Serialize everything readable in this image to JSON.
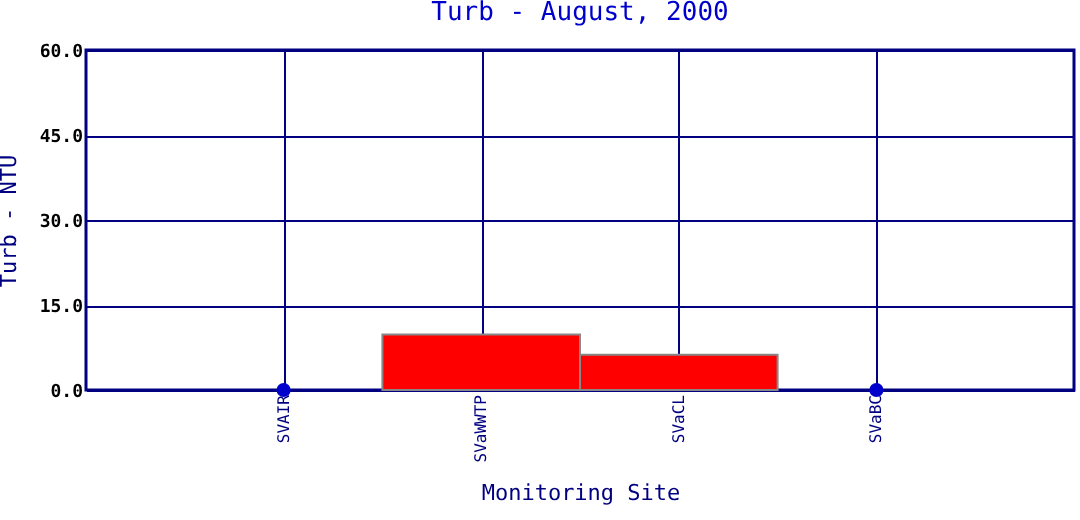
{
  "chart_data": {
    "type": "bar",
    "title": "Turb - August, 2000",
    "xlabel": "Monitoring Site",
    "ylabel": "Turb - NTU",
    "categories": [
      "SVAIR",
      "SVaWWTP",
      "SVaCL",
      "SVaBC"
    ],
    "series": [
      {
        "color": "#ff0000",
        "values": [
          null,
          9.8,
          6.2,
          null
        ]
      },
      {
        "type": "scatter",
        "color": "#0000cc",
        "x": [
          "SVAIR",
          "SVaBC"
        ],
        "values": [
          0,
          0
        ]
      }
    ],
    "ylim": [
      0,
      60
    ],
    "yticks": [
      {
        "value": 0,
        "label": "0.0"
      },
      {
        "value": 15,
        "label": "15.0"
      },
      {
        "value": 30,
        "label": "30.0"
      },
      {
        "value": 45,
        "label": "45.0"
      },
      {
        "value": 60,
        "label": "60.0"
      }
    ],
    "grid": true,
    "marker": "circle"
  }
}
